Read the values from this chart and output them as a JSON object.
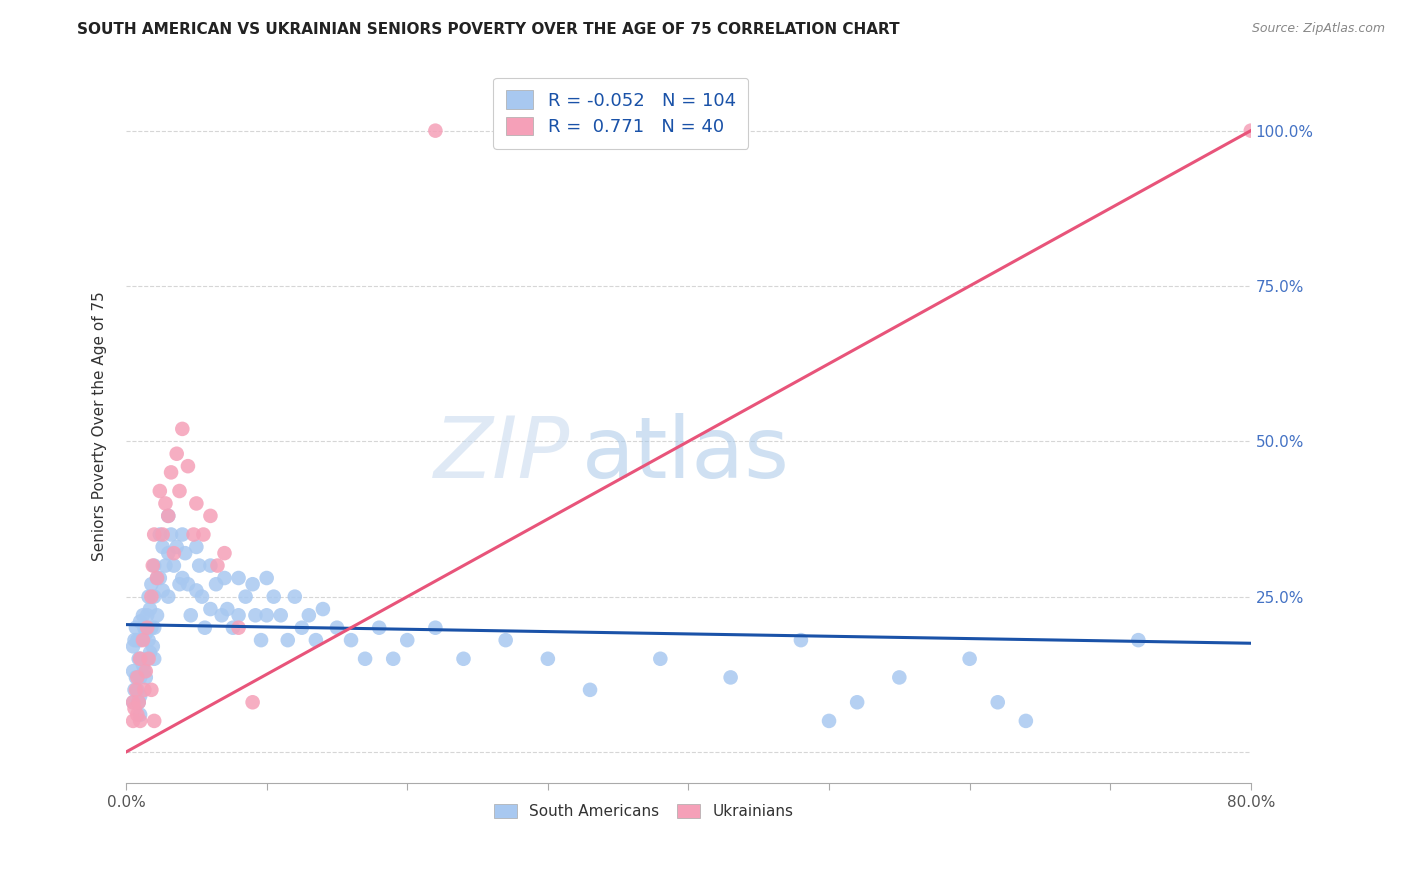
{
  "title": "SOUTH AMERICAN VS UKRAINIAN SENIORS POVERTY OVER THE AGE OF 75 CORRELATION CHART",
  "source": "Source: ZipAtlas.com",
  "ylabel": "Seniors Poverty Over the Age of 75",
  "xlim": [
    0,
    0.8
  ],
  "ylim": [
    -0.05,
    1.1
  ],
  "xtick_pos": [
    0.0,
    0.1,
    0.2,
    0.3,
    0.4,
    0.5,
    0.6,
    0.7,
    0.8
  ],
  "xticklabels": [
    "0.0%",
    "",
    "",
    "",
    "",
    "",
    "",
    "",
    "80.0%"
  ],
  "ytick_pos": [
    0.0,
    0.25,
    0.5,
    0.75,
    1.0
  ],
  "ytick_labels_right": [
    "",
    "25.0%",
    "50.0%",
    "75.0%",
    "100.0%"
  ],
  "blue_R": -0.052,
  "blue_N": 104,
  "pink_R": 0.771,
  "pink_N": 40,
  "blue_color": "#A8C8F0",
  "pink_color": "#F5A0B8",
  "blue_line_color": "#1A52A8",
  "pink_line_color": "#E8547A",
  "legend_label_blue": "South Americans",
  "legend_label_pink": "Ukrainians",
  "blue_line_x": [
    0.0,
    0.8
  ],
  "blue_line_y": [
    0.205,
    0.175
  ],
  "pink_line_x": [
    0.0,
    0.8
  ],
  "pink_line_y": [
    0.0,
    1.0
  ],
  "blue_scatter_x": [
    0.005,
    0.005,
    0.005,
    0.006,
    0.006,
    0.007,
    0.007,
    0.008,
    0.008,
    0.009,
    0.009,
    0.01,
    0.01,
    0.01,
    0.01,
    0.01,
    0.01,
    0.012,
    0.012,
    0.013,
    0.013,
    0.014,
    0.014,
    0.015,
    0.015,
    0.016,
    0.016,
    0.017,
    0.017,
    0.018,
    0.018,
    0.019,
    0.02,
    0.02,
    0.02,
    0.02,
    0.022,
    0.022,
    0.024,
    0.024,
    0.026,
    0.026,
    0.028,
    0.03,
    0.03,
    0.03,
    0.032,
    0.034,
    0.036,
    0.038,
    0.04,
    0.04,
    0.042,
    0.044,
    0.046,
    0.05,
    0.05,
    0.052,
    0.054,
    0.056,
    0.06,
    0.06,
    0.064,
    0.068,
    0.07,
    0.072,
    0.076,
    0.08,
    0.08,
    0.085,
    0.09,
    0.092,
    0.096,
    0.1,
    0.1,
    0.105,
    0.11,
    0.115,
    0.12,
    0.125,
    0.13,
    0.135,
    0.14,
    0.15,
    0.16,
    0.17,
    0.18,
    0.19,
    0.2,
    0.22,
    0.24,
    0.27,
    0.3,
    0.33,
    0.38,
    0.43,
    0.48,
    0.5,
    0.52,
    0.55,
    0.6,
    0.62,
    0.64,
    0.72
  ],
  "blue_scatter_y": [
    0.17,
    0.13,
    0.08,
    0.18,
    0.1,
    0.2,
    0.12,
    0.18,
    0.1,
    0.15,
    0.08,
    0.21,
    0.18,
    0.15,
    0.12,
    0.09,
    0.06,
    0.22,
    0.14,
    0.2,
    0.13,
    0.19,
    0.12,
    0.22,
    0.15,
    0.25,
    0.18,
    0.23,
    0.16,
    0.27,
    0.2,
    0.17,
    0.3,
    0.25,
    0.2,
    0.15,
    0.28,
    0.22,
    0.35,
    0.28,
    0.33,
    0.26,
    0.3,
    0.38,
    0.32,
    0.25,
    0.35,
    0.3,
    0.33,
    0.27,
    0.35,
    0.28,
    0.32,
    0.27,
    0.22,
    0.33,
    0.26,
    0.3,
    0.25,
    0.2,
    0.3,
    0.23,
    0.27,
    0.22,
    0.28,
    0.23,
    0.2,
    0.28,
    0.22,
    0.25,
    0.27,
    0.22,
    0.18,
    0.28,
    0.22,
    0.25,
    0.22,
    0.18,
    0.25,
    0.2,
    0.22,
    0.18,
    0.23,
    0.2,
    0.18,
    0.15,
    0.2,
    0.15,
    0.18,
    0.2,
    0.15,
    0.18,
    0.15,
    0.1,
    0.15,
    0.12,
    0.18,
    0.05,
    0.08,
    0.12,
    0.15,
    0.08,
    0.05,
    0.18
  ],
  "pink_scatter_x": [
    0.005,
    0.005,
    0.006,
    0.007,
    0.008,
    0.008,
    0.009,
    0.01,
    0.01,
    0.012,
    0.013,
    0.014,
    0.015,
    0.016,
    0.018,
    0.018,
    0.019,
    0.02,
    0.02,
    0.022,
    0.024,
    0.026,
    0.028,
    0.03,
    0.032,
    0.034,
    0.036,
    0.038,
    0.04,
    0.044,
    0.048,
    0.05,
    0.055,
    0.06,
    0.065,
    0.07,
    0.08,
    0.09,
    0.22,
    0.8
  ],
  "pink_scatter_y": [
    0.08,
    0.05,
    0.07,
    0.1,
    0.12,
    0.06,
    0.08,
    0.15,
    0.05,
    0.18,
    0.1,
    0.13,
    0.2,
    0.15,
    0.25,
    0.1,
    0.3,
    0.35,
    0.05,
    0.28,
    0.42,
    0.35,
    0.4,
    0.38,
    0.45,
    0.32,
    0.48,
    0.42,
    0.52,
    0.46,
    0.35,
    0.4,
    0.35,
    0.38,
    0.3,
    0.32,
    0.2,
    0.08,
    1.0,
    1.0
  ]
}
